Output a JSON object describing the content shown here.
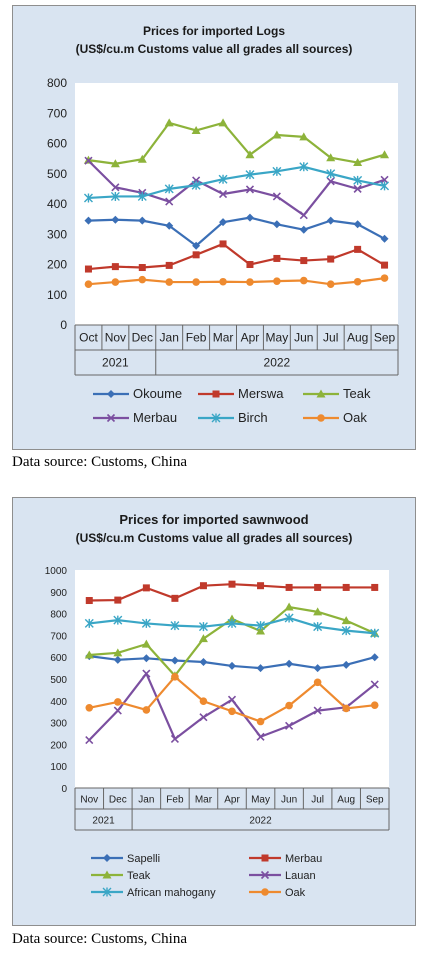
{
  "chart_data": [
    {
      "type": "line",
      "title": "Prices for imported Logs",
      "subtitle": "(US$/cu.m Customs value all grades all sources)",
      "categories": [
        "Oct",
        "Nov",
        "Dec",
        "Jan",
        "Feb",
        "Mar",
        "Apr",
        "May",
        "Jun",
        "Jul",
        "Aug",
        "Sep"
      ],
      "year_groups": [
        {
          "label": "2021",
          "span": 3
        },
        {
          "label": "2022",
          "span": 9
        }
      ],
      "ylim": [
        0,
        800
      ],
      "yticks": [
        "0",
        "100",
        "200",
        "300",
        "400",
        "500",
        "600",
        "700",
        "800"
      ],
      "grid": false,
      "legend_position": "bottom",
      "series": [
        {
          "name": "Okoume",
          "color": "#3b6fb6",
          "marker": "diamond",
          "values": [
            345,
            348,
            345,
            328,
            262,
            340,
            355,
            333,
            315,
            345,
            333,
            285
          ]
        },
        {
          "name": "Merswa",
          "color": "#c0392b",
          "marker": "square",
          "values": [
            185,
            193,
            190,
            197,
            232,
            268,
            200,
            220,
            213,
            218,
            250,
            198
          ]
        },
        {
          "name": "Teak",
          "color": "#8db33a",
          "marker": "triangle",
          "values": [
            545,
            533,
            548,
            668,
            643,
            668,
            563,
            628,
            622,
            553,
            537,
            563
          ]
        },
        {
          "name": "Merbau",
          "color": "#7b4fa0",
          "marker": "x",
          "values": [
            543,
            455,
            437,
            408,
            478,
            433,
            448,
            425,
            363,
            475,
            450,
            480
          ]
        },
        {
          "name": "Birch",
          "color": "#3aa6c6",
          "marker": "star",
          "values": [
            420,
            425,
            425,
            450,
            462,
            482,
            497,
            508,
            523,
            500,
            478,
            460
          ]
        },
        {
          "name": "Oak",
          "color": "#ee8a2f",
          "marker": "circle",
          "values": [
            135,
            142,
            150,
            142,
            142,
            143,
            142,
            145,
            147,
            135,
            143,
            155
          ]
        }
      ]
    },
    {
      "type": "line",
      "title": "Prices for imported sawnwood",
      "subtitle": "(US$/cu.m Customs value all grades all sources)",
      "categories": [
        "Nov",
        "Dec",
        "Jan",
        "Feb",
        "Mar",
        "Apr",
        "May",
        "Jun",
        "Jul",
        "Aug",
        "Sep"
      ],
      "year_groups": [
        {
          "label": "2021",
          "span": 2
        },
        {
          "label": "2022",
          "span": 9
        }
      ],
      "ylim": [
        0,
        1000
      ],
      "yticks": [
        "0",
        "100",
        "200",
        "300",
        "400",
        "500",
        "600",
        "700",
        "800",
        "900",
        "1000"
      ],
      "grid": false,
      "legend_position": "bottom",
      "series": [
        {
          "name": "Sapelli",
          "color": "#3b6fb6",
          "marker": "diamond",
          "values": [
            605,
            588,
            595,
            585,
            578,
            560,
            550,
            570,
            550,
            565,
            600
          ]
        },
        {
          "name": "Merbau",
          "color": "#c0392b",
          "marker": "square",
          "values": [
            860,
            862,
            918,
            870,
            928,
            935,
            928,
            920,
            920,
            920,
            920
          ]
        },
        {
          "name": "Teak",
          "color": "#8db33a",
          "marker": "triangle",
          "values": [
            610,
            620,
            660,
            515,
            685,
            775,
            720,
            830,
            808,
            768,
            710
          ]
        },
        {
          "name": "Lauan",
          "color": "#7b4fa0",
          "marker": "x",
          "values": [
            220,
            355,
            525,
            225,
            325,
            405,
            235,
            285,
            355,
            370,
            475
          ]
        },
        {
          "name": "African mahogany",
          "color": "#3aa6c6",
          "marker": "star",
          "values": [
            755,
            770,
            755,
            745,
            740,
            755,
            745,
            780,
            740,
            722,
            710
          ]
        },
        {
          "name": "Oak",
          "color": "#ee8a2f",
          "marker": "circle",
          "values": [
            368,
            395,
            358,
            510,
            398,
            352,
            305,
            378,
            485,
            365,
            380
          ]
        }
      ]
    }
  ],
  "sources": [
    "Data source: Customs, China",
    "Data source: Customs, China"
  ]
}
